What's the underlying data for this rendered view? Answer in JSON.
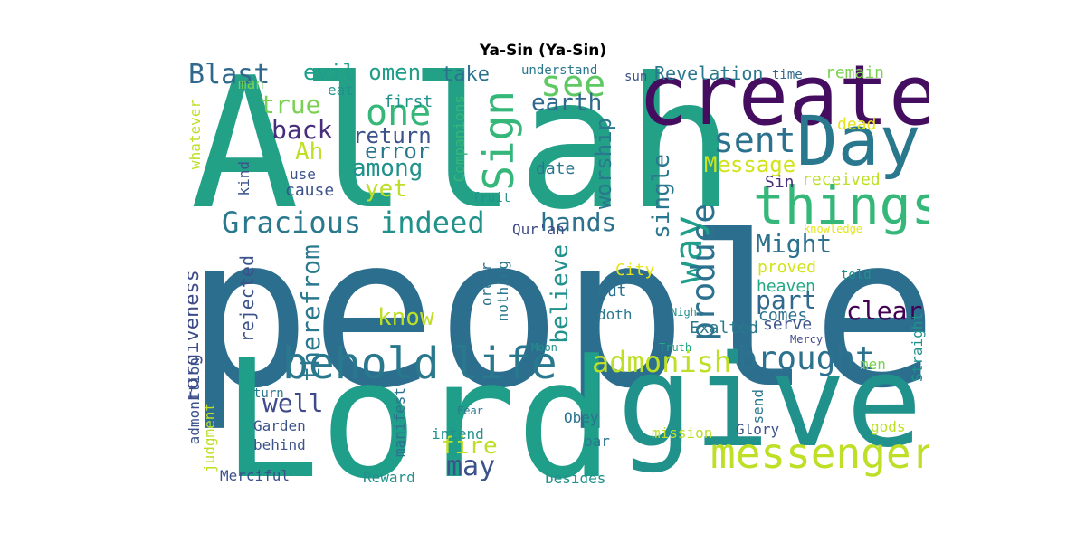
{
  "title": "Ya-Sin (Ya-Sin)",
  "palette": {
    "dark_purple": "#440154",
    "indigo": "#414487",
    "blue": "#2a788e",
    "teal": "#21918c",
    "green": "#22a884",
    "light_green": "#7ad151",
    "yellow_green": "#bddf26",
    "yellow": "#fde725"
  },
  "words": [
    {
      "text": "people",
      "color": "#2c6e8e"
    },
    {
      "text": "Allah",
      "color": "#22a187"
    },
    {
      "text": "Lord",
      "color": "#1f9e89"
    },
    {
      "text": "give",
      "color": "#21918c"
    },
    {
      "text": "created",
      "color": "#440d5f"
    },
    {
      "text": "Day",
      "color": "#2a788e"
    },
    {
      "text": "things",
      "color": "#35b779"
    },
    {
      "text": "messenger",
      "color": "#bddf26"
    },
    {
      "text": "behold",
      "color": "#2a788e"
    },
    {
      "text": "life",
      "color": "#2a788e"
    },
    {
      "text": "one",
      "color": "#35b779"
    },
    {
      "text": "see",
      "color": "#5ec962"
    },
    {
      "text": "Sign",
      "color": "#35b779"
    },
    {
      "text": "sent",
      "color": "#2c728e"
    },
    {
      "text": "brought",
      "color": "#2c728e"
    },
    {
      "text": "admonish",
      "color": "#bddf26"
    },
    {
      "text": "way",
      "color": "#1f9e89"
    },
    {
      "text": "produce",
      "color": "#2c728e"
    },
    {
      "text": "Gracious",
      "color": "#2a788e"
    },
    {
      "text": "indeed",
      "color": "#21918c"
    },
    {
      "text": "hands",
      "color": "#2c728e"
    },
    {
      "text": "Blast",
      "color": "#31688e"
    },
    {
      "text": "evil omen",
      "color": "#1f9e89"
    },
    {
      "text": "true",
      "color": "#7ad151"
    },
    {
      "text": "back",
      "color": "#472d7b"
    },
    {
      "text": "return",
      "color": "#3b528b"
    },
    {
      "text": "error",
      "color": "#2a788e"
    },
    {
      "text": "among",
      "color": "#21918c"
    },
    {
      "text": "earth",
      "color": "#31688e"
    },
    {
      "text": "Ah",
      "color": "#bddf26"
    },
    {
      "text": "yet",
      "color": "#bddf26"
    },
    {
      "text": "Message",
      "color": "#d2e21b"
    },
    {
      "text": "Might",
      "color": "#2c728e"
    },
    {
      "text": "part",
      "color": "#31688e"
    },
    {
      "text": "clear",
      "color": "#440154"
    },
    {
      "text": "worship",
      "color": "#2a788e"
    },
    {
      "text": "single",
      "color": "#2a788e"
    },
    {
      "text": "believe",
      "color": "#21918c"
    },
    {
      "text": "know",
      "color": "#bddf26"
    },
    {
      "text": "therefrom",
      "color": "#2a788e"
    },
    {
      "text": "fire",
      "color": "#bddf26"
    },
    {
      "text": "may",
      "color": "#3b528b"
    },
    {
      "text": "well",
      "color": "#3e4a89"
    },
    {
      "text": "Forgiveness",
      "color": "#3e4a89"
    },
    {
      "text": "rejected",
      "color": "#3b528b"
    },
    {
      "text": "Revelation",
      "color": "#2a788e"
    },
    {
      "text": "take",
      "color": "#2c728e"
    },
    {
      "text": "man",
      "color": "#7ad151"
    },
    {
      "text": "eat",
      "color": "#21918c"
    },
    {
      "text": "first",
      "color": "#21918c"
    },
    {
      "text": "Companions",
      "color": "#35b779"
    },
    {
      "text": "understand",
      "color": "#2a788e"
    },
    {
      "text": "sun",
      "color": "#3b528b"
    },
    {
      "text": "time",
      "color": "#31688e"
    },
    {
      "text": "remain",
      "color": "#7ad151"
    },
    {
      "text": "dead",
      "color": "#e5e419"
    },
    {
      "text": "received",
      "color": "#bddf26"
    },
    {
      "text": "Sin",
      "color": "#472d7b"
    },
    {
      "text": "whatever",
      "color": "#bddf26"
    },
    {
      "text": "use",
      "color": "#3b528b"
    },
    {
      "text": "cause",
      "color": "#3b528b"
    },
    {
      "text": "kind",
      "color": "#3b528b"
    },
    {
      "text": "date",
      "color": "#2a788e"
    },
    {
      "text": "fruit",
      "color": "#21918c"
    },
    {
      "text": "Qur'an",
      "color": "#3e4a89"
    },
    {
      "text": "knowledge",
      "color": "#e5e419"
    },
    {
      "text": "City",
      "color": "#e5e419"
    },
    {
      "text": "proved",
      "color": "#d2e21b"
    },
    {
      "text": "told",
      "color": "#21918c"
    },
    {
      "text": "heaven",
      "color": "#22a884"
    },
    {
      "text": "put",
      "color": "#2c728e"
    },
    {
      "text": "order",
      "color": "#2c728e"
    },
    {
      "text": "nothing",
      "color": "#2a788e"
    },
    {
      "text": "doth",
      "color": "#2a788e"
    },
    {
      "text": "Night",
      "color": "#21918c"
    },
    {
      "text": "comes",
      "color": "#2c728e"
    },
    {
      "text": "serve",
      "color": "#3b528b"
    },
    {
      "text": "Exalted",
      "color": "#2a788e"
    },
    {
      "text": "Mercy",
      "color": "#3e4a89"
    },
    {
      "text": "Moon",
      "color": "#21918c"
    },
    {
      "text": "Truth",
      "color": "#22a884"
    },
    {
      "text": "Straight",
      "color": "#21918c"
    },
    {
      "text": "men",
      "color": "#7ad151"
    },
    {
      "text": "admonition",
      "color": "#3b528b"
    },
    {
      "text": "judgment",
      "color": "#bddf26"
    },
    {
      "text": "turn",
      "color": "#2a788e"
    },
    {
      "text": "manifest",
      "color": "#2c728e"
    },
    {
      "text": "Fear",
      "color": "#2a788e"
    },
    {
      "text": "Garden",
      "color": "#3b528b"
    },
    {
      "text": "behind",
      "color": "#3b528b"
    },
    {
      "text": "intend",
      "color": "#21918c"
    },
    {
      "text": "Obey",
      "color": "#2c728e"
    },
    {
      "text": "mission",
      "color": "#bddf26"
    },
    {
      "text": "bar",
      "color": "#2a788e"
    },
    {
      "text": "send",
      "color": "#2a788e"
    },
    {
      "text": "Glory",
      "color": "#3b528b"
    },
    {
      "text": "gods",
      "color": "#bddf26"
    },
    {
      "text": "Merciful",
      "color": "#3b528b"
    },
    {
      "text": "Reward",
      "color": "#21918c"
    },
    {
      "text": "besides",
      "color": "#21918c"
    }
  ]
}
